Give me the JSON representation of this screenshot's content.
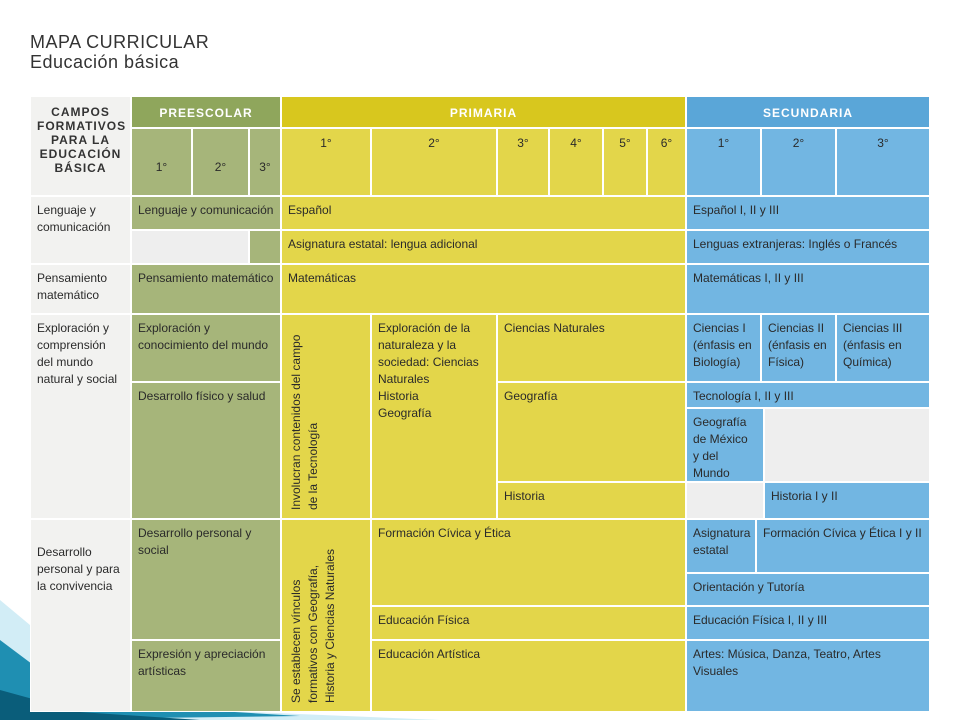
{
  "header": {
    "title": "MAPA CURRICULAR",
    "subtitle": "Educación básica"
  },
  "table": {
    "corner": "CAMPOS FORMATIVOS PARA LA EDUCACIÓN BÁSICA",
    "levels": [
      "PREESCOLAR",
      "PRIMARIA",
      "SECUNDARIA"
    ],
    "grades": {
      "preescolar": [
        "1°",
        "2°",
        "3°"
      ],
      "primaria": [
        "1°",
        "2°",
        "3°",
        "4°",
        "5°",
        "6°"
      ],
      "secundaria": [
        "1°",
        "2°",
        "3°"
      ]
    },
    "fields": [
      "Lenguaje y comunicación",
      "Pensamiento matemático",
      "Exploración y comprensión del mundo natural y social",
      "Desarrollo personal y para la convivencia"
    ],
    "cells": [
      "Lenguaje y comunicación",
      "Español",
      "Español I, II y III",
      "Asignatura estatal: lengua adicional",
      "Lenguas extranjeras: Inglés o Francés",
      "Pensamiento matemático",
      "Matemáticas",
      "Matemáticas I, II y III",
      "Exploración y conocimiento del mundo",
      "Desarrollo físico y salud",
      "Involucran contenidos del campo de la Tecnología",
      [
        "Exploración de la naturaleza y la sociedad: Ciencias Naturales",
        "Historia",
        "Geografía"
      ],
      "Ciencias Naturales",
      "Geografía",
      "Historia",
      "Ciencias I (énfasis en Biología)",
      "Ciencias II (énfasis en Física)",
      "Ciencias III (énfasis en Química)",
      "Tecnología I, II y III",
      "Geografía de México y del Mundo",
      "Historia I y II",
      "Desarrollo personal y social",
      "Expresión y apreciación artísticas",
      "Se establecen vínculos formativos con Geografía, Historia y Ciencias Naturales",
      "Formación Cívica y Ética",
      "Educación Física",
      "Educación Artística",
      "Asignatura estatal",
      "Formación Cívica y Ética I y II",
      "Orientación y Tutoría",
      "Educación Física I, II y III",
      "Artes: Música, Danza, Teatro, Artes Visuales"
    ]
  }
}
